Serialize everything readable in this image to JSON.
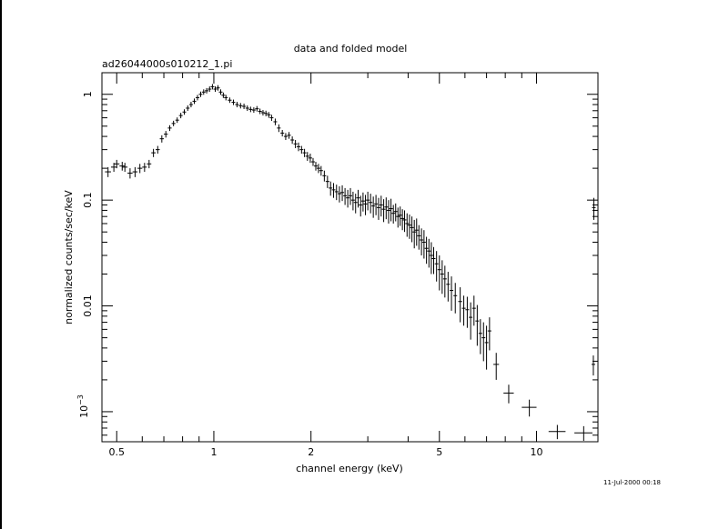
{
  "chart_data": {
    "type": "scatter",
    "title": "data and folded model",
    "subtitle": "ad26044000s010212_1.pi",
    "xlabel": "channel energy (keV)",
    "ylabel": "normalized counts/sec/keV",
    "footer": "11-Jul-2000 00:18",
    "x_scale": "log",
    "y_scale": "log",
    "xlim": [
      0.45,
      15.5
    ],
    "ylim": [
      0.00052,
      1.6
    ],
    "x_ticks": [
      {
        "value": 0.5,
        "label": "0.5"
      },
      {
        "value": 1,
        "label": "1"
      },
      {
        "value": 2,
        "label": "2"
      },
      {
        "value": 5,
        "label": "5"
      },
      {
        "value": 10,
        "label": "10"
      }
    ],
    "y_ticks": [
      {
        "value": 1,
        "label": "1"
      },
      {
        "value": 0.1,
        "label": "0.1"
      },
      {
        "value": 0.01,
        "label": "0.01"
      }
    ],
    "y_tick_0001": {
      "base": "10",
      "exponent": "−3"
    },
    "grid": false,
    "series": [
      {
        "style": "crosses",
        "points": [
          [
            0.47,
            0.185,
            0.01,
            0.02
          ],
          [
            0.49,
            0.205,
            0.01,
            0.02
          ],
          [
            0.5,
            0.22,
            0.01,
            0.02
          ],
          [
            0.52,
            0.21,
            0.01,
            0.02
          ],
          [
            0.53,
            0.205,
            0.01,
            0.02
          ],
          [
            0.55,
            0.18,
            0.01,
            0.02
          ],
          [
            0.57,
            0.185,
            0.01,
            0.02
          ],
          [
            0.59,
            0.2,
            0.01,
            0.02
          ],
          [
            0.61,
            0.205,
            0.01,
            0.02
          ],
          [
            0.63,
            0.22,
            0.01,
            0.02
          ],
          [
            0.65,
            0.28,
            0.01,
            0.025
          ],
          [
            0.67,
            0.3,
            0.01,
            0.025
          ],
          [
            0.69,
            0.38,
            0.01,
            0.03
          ],
          [
            0.71,
            0.42,
            0.01,
            0.03
          ],
          [
            0.73,
            0.48,
            0.01,
            0.03
          ],
          [
            0.75,
            0.53,
            0.01,
            0.03
          ],
          [
            0.77,
            0.57,
            0.01,
            0.03
          ],
          [
            0.79,
            0.63,
            0.01,
            0.03
          ],
          [
            0.81,
            0.68,
            0.01,
            0.03
          ],
          [
            0.83,
            0.74,
            0.01,
            0.04
          ],
          [
            0.85,
            0.8,
            0.01,
            0.04
          ],
          [
            0.87,
            0.86,
            0.01,
            0.04
          ],
          [
            0.89,
            0.93,
            0.01,
            0.04
          ],
          [
            0.91,
            1.0,
            0.01,
            0.05
          ],
          [
            0.93,
            1.05,
            0.01,
            0.05
          ],
          [
            0.95,
            1.08,
            0.01,
            0.05
          ],
          [
            0.97,
            1.12,
            0.01,
            0.05
          ],
          [
            0.99,
            1.18,
            0.01,
            0.05
          ],
          [
            1.01,
            1.12,
            0.01,
            0.05
          ],
          [
            1.03,
            1.15,
            0.01,
            0.05
          ],
          [
            1.05,
            1.05,
            0.01,
            0.05
          ],
          [
            1.07,
            0.98,
            0.01,
            0.05
          ],
          [
            1.09,
            0.93,
            0.01,
            0.05
          ],
          [
            1.12,
            0.88,
            0.015,
            0.04
          ],
          [
            1.15,
            0.84,
            0.015,
            0.04
          ],
          [
            1.18,
            0.8,
            0.015,
            0.04
          ],
          [
            1.21,
            0.78,
            0.015,
            0.04
          ],
          [
            1.24,
            0.77,
            0.015,
            0.04
          ],
          [
            1.27,
            0.74,
            0.015,
            0.04
          ],
          [
            1.3,
            0.72,
            0.015,
            0.04
          ],
          [
            1.33,
            0.71,
            0.015,
            0.04
          ],
          [
            1.36,
            0.73,
            0.015,
            0.04
          ],
          [
            1.39,
            0.69,
            0.015,
            0.04
          ],
          [
            1.42,
            0.67,
            0.015,
            0.04
          ],
          [
            1.45,
            0.66,
            0.015,
            0.04
          ],
          [
            1.48,
            0.64,
            0.015,
            0.04
          ],
          [
            1.51,
            0.6,
            0.015,
            0.04
          ],
          [
            1.55,
            0.55,
            0.02,
            0.04
          ],
          [
            1.59,
            0.48,
            0.02,
            0.04
          ],
          [
            1.63,
            0.43,
            0.02,
            0.03
          ],
          [
            1.67,
            0.4,
            0.02,
            0.03
          ],
          [
            1.71,
            0.41,
            0.02,
            0.03
          ],
          [
            1.75,
            0.37,
            0.02,
            0.03
          ],
          [
            1.79,
            0.34,
            0.02,
            0.03
          ],
          [
            1.83,
            0.32,
            0.02,
            0.03
          ],
          [
            1.87,
            0.3,
            0.02,
            0.025
          ],
          [
            1.91,
            0.28,
            0.02,
            0.025
          ],
          [
            1.95,
            0.26,
            0.02,
            0.025
          ],
          [
            1.99,
            0.25,
            0.02,
            0.025
          ],
          [
            2.03,
            0.23,
            0.02,
            0.02
          ],
          [
            2.07,
            0.21,
            0.02,
            0.02
          ],
          [
            2.11,
            0.2,
            0.02,
            0.02
          ],
          [
            2.15,
            0.19,
            0.02,
            0.02
          ],
          [
            2.2,
            0.17,
            0.025,
            0.02
          ],
          [
            2.25,
            0.15,
            0.025,
            0.02
          ],
          [
            2.3,
            0.13,
            0.025,
            0.02
          ],
          [
            2.35,
            0.125,
            0.025,
            0.02
          ],
          [
            2.4,
            0.12,
            0.025,
            0.02
          ],
          [
            2.45,
            0.115,
            0.025,
            0.02
          ],
          [
            2.5,
            0.118,
            0.025,
            0.02
          ],
          [
            2.55,
            0.11,
            0.025,
            0.02
          ],
          [
            2.6,
            0.105,
            0.025,
            0.02
          ],
          [
            2.65,
            0.11,
            0.025,
            0.02
          ],
          [
            2.7,
            0.1,
            0.025,
            0.02
          ],
          [
            2.75,
            0.095,
            0.025,
            0.02
          ],
          [
            2.8,
            0.105,
            0.025,
            0.02
          ],
          [
            2.85,
            0.09,
            0.025,
            0.02
          ],
          [
            2.9,
            0.098,
            0.025,
            0.02
          ],
          [
            2.95,
            0.092,
            0.025,
            0.02
          ],
          [
            3.0,
            0.1,
            0.03,
            0.02
          ],
          [
            3.06,
            0.095,
            0.03,
            0.02
          ],
          [
            3.12,
            0.088,
            0.03,
            0.02
          ],
          [
            3.18,
            0.092,
            0.03,
            0.02
          ],
          [
            3.24,
            0.085,
            0.03,
            0.02
          ],
          [
            3.3,
            0.09,
            0.03,
            0.02
          ],
          [
            3.36,
            0.082,
            0.03,
            0.02
          ],
          [
            3.42,
            0.086,
            0.03,
            0.02
          ],
          [
            3.48,
            0.08,
            0.03,
            0.02
          ],
          [
            3.54,
            0.083,
            0.03,
            0.02
          ],
          [
            3.6,
            0.075,
            0.03,
            0.015
          ],
          [
            3.66,
            0.078,
            0.03,
            0.015
          ],
          [
            3.72,
            0.07,
            0.03,
            0.015
          ],
          [
            3.78,
            0.072,
            0.03,
            0.015
          ],
          [
            3.84,
            0.067,
            0.03,
            0.015
          ],
          [
            3.9,
            0.065,
            0.03,
            0.015
          ],
          [
            3.97,
            0.06,
            0.035,
            0.015
          ],
          [
            4.04,
            0.058,
            0.035,
            0.015
          ],
          [
            4.11,
            0.055,
            0.035,
            0.015
          ],
          [
            4.18,
            0.05,
            0.035,
            0.015
          ],
          [
            4.25,
            0.052,
            0.035,
            0.015
          ],
          [
            4.32,
            0.046,
            0.035,
            0.012
          ],
          [
            4.4,
            0.042,
            0.04,
            0.012
          ],
          [
            4.48,
            0.04,
            0.04,
            0.012
          ],
          [
            4.56,
            0.035,
            0.04,
            0.01
          ],
          [
            4.64,
            0.033,
            0.04,
            0.01
          ],
          [
            4.72,
            0.03,
            0.04,
            0.01
          ],
          [
            4.8,
            0.028,
            0.04,
            0.008
          ],
          [
            4.9,
            0.025,
            0.05,
            0.008
          ],
          [
            5.0,
            0.022,
            0.05,
            0.008
          ],
          [
            5.1,
            0.02,
            0.05,
            0.007
          ],
          [
            5.2,
            0.018,
            0.05,
            0.006
          ],
          [
            5.32,
            0.016,
            0.06,
            0.005
          ],
          [
            5.45,
            0.014,
            0.06,
            0.005
          ],
          [
            5.6,
            0.0125,
            0.07,
            0.004
          ],
          [
            5.8,
            0.011,
            0.08,
            0.004
          ],
          [
            5.95,
            0.0095,
            0.08,
            0.003
          ],
          [
            6.1,
            0.0092,
            0.08,
            0.003
          ],
          [
            6.25,
            0.0078,
            0.08,
            0.003
          ],
          [
            6.4,
            0.0095,
            0.08,
            0.003
          ],
          [
            6.55,
            0.0072,
            0.08,
            0.003
          ],
          [
            6.7,
            0.0055,
            0.08,
            0.002
          ],
          [
            6.85,
            0.005,
            0.08,
            0.002
          ],
          [
            7.0,
            0.0045,
            0.08,
            0.002
          ],
          [
            7.15,
            0.0058,
            0.08,
            0.002
          ],
          [
            7.5,
            0.0028,
            0.15,
            0.0008
          ],
          [
            8.2,
            0.0015,
            0.3,
            0.0003
          ],
          [
            9.5,
            0.0011,
            0.5,
            0.0002
          ],
          [
            11.6,
            0.00065,
            0.7,
            0.0001
          ],
          [
            14.0,
            0.00063,
            0.9,
            0.0001
          ],
          [
            15.0,
            0.0028,
            0.05,
            0.0006
          ],
          [
            15.05,
            0.085,
            0.05,
            0.02
          ]
        ]
      }
    ]
  }
}
